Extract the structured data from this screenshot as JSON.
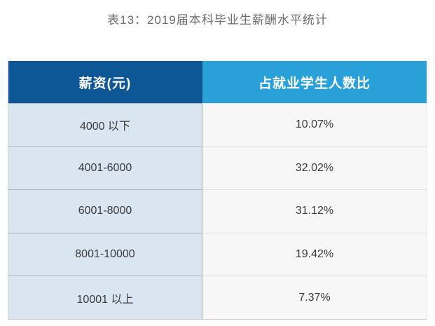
{
  "page": {
    "title": "表13：2019届本科毕业生薪酬水平统计"
  },
  "table": {
    "headers": {
      "salary": "薪资(元)",
      "ratio": "占就业学生人数比"
    },
    "rows": [
      {
        "salary": "4000 以下",
        "ratio": "10.07%"
      },
      {
        "salary": "4001-6000",
        "ratio": "32.02%"
      },
      {
        "salary": "6001-8000",
        "ratio": "31.12%"
      },
      {
        "salary": "8001-10000",
        "ratio": "19.42%"
      },
      {
        "salary": "10001 以上",
        "ratio": "7.37%"
      }
    ]
  },
  "colors": {
    "header_left_bg": "#0e5796",
    "header_right_bg": "#29a0d8",
    "row_left_bg": "#d9e6f2",
    "row_right_bg": "#f7f7f7",
    "title_text": "#6b6b6b",
    "cell_text": "#3a3a3a"
  },
  "chart_data": {
    "type": "table",
    "title": "表13：2019届本科毕业生薪酬水平统计",
    "columns": [
      "薪资(元)",
      "占就业学生人数比"
    ],
    "categories": [
      "4000 以下",
      "4001-6000",
      "6001-8000",
      "8001-10000",
      "10001 以上"
    ],
    "values_percent": [
      10.07,
      32.02,
      31.12,
      19.42,
      7.37
    ]
  }
}
